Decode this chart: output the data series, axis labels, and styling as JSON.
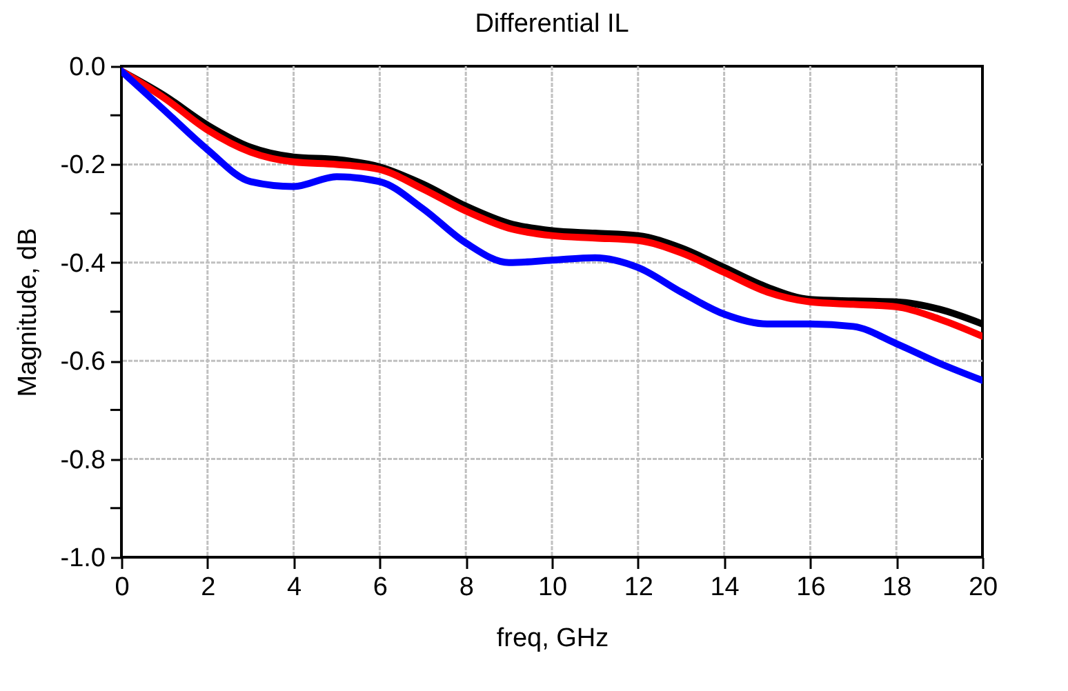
{
  "chart_data": {
    "type": "line",
    "title": "Differential IL",
    "xlabel": "freq, GHz",
    "ylabel": "Magnitude, dB",
    "x": [
      0,
      1,
      2,
      3,
      4,
      5,
      6,
      7,
      8,
      9,
      10,
      11,
      12,
      13,
      14,
      15,
      16,
      17,
      18,
      19,
      20
    ],
    "series": [
      {
        "color": "#000000",
        "values": [
          -0.01,
          -0.06,
          -0.12,
          -0.165,
          -0.185,
          -0.19,
          -0.205,
          -0.24,
          -0.285,
          -0.32,
          -0.335,
          -0.34,
          -0.345,
          -0.37,
          -0.41,
          -0.45,
          -0.475,
          -0.478,
          -0.48,
          -0.495,
          -0.525
        ]
      },
      {
        "color": "#ff0000",
        "values": [
          -0.01,
          -0.065,
          -0.13,
          -0.175,
          -0.195,
          -0.2,
          -0.21,
          -0.25,
          -0.295,
          -0.33,
          -0.345,
          -0.35,
          -0.355,
          -0.38,
          -0.42,
          -0.46,
          -0.48,
          -0.485,
          -0.49,
          -0.515,
          -0.55
        ]
      },
      {
        "color": "#0000ff",
        "values": [
          -0.01,
          -0.09,
          -0.17,
          -0.235,
          -0.245,
          -0.225,
          -0.235,
          -0.29,
          -0.36,
          -0.4,
          -0.395,
          -0.39,
          -0.41,
          -0.46,
          -0.505,
          -0.525,
          -0.525,
          -0.53,
          -0.565,
          -0.605,
          -0.64
        ]
      }
    ],
    "xlim": [
      0,
      20
    ],
    "xticks": [
      0,
      2,
      4,
      6,
      8,
      10,
      12,
      14,
      16,
      18,
      20
    ],
    "ylim": [
      -1.0,
      0.0
    ],
    "yticks": [
      {
        "value": -1.0,
        "label": "-1.0"
      },
      {
        "value": -0.9,
        "label": null
      },
      {
        "value": -0.8,
        "label": "-0.8"
      },
      {
        "value": -0.7,
        "label": null
      },
      {
        "value": -0.6,
        "label": "-0.6"
      },
      {
        "value": -0.5,
        "label": null
      },
      {
        "value": -0.4,
        "label": "-0.4"
      },
      {
        "value": -0.3,
        "label": null
      },
      {
        "value": -0.2,
        "label": "-0.2"
      },
      {
        "value": -0.1,
        "label": null
      },
      {
        "value": 0.0,
        "label": "0.0"
      }
    ],
    "grid": true,
    "legend": false,
    "line_style": "solid"
  }
}
